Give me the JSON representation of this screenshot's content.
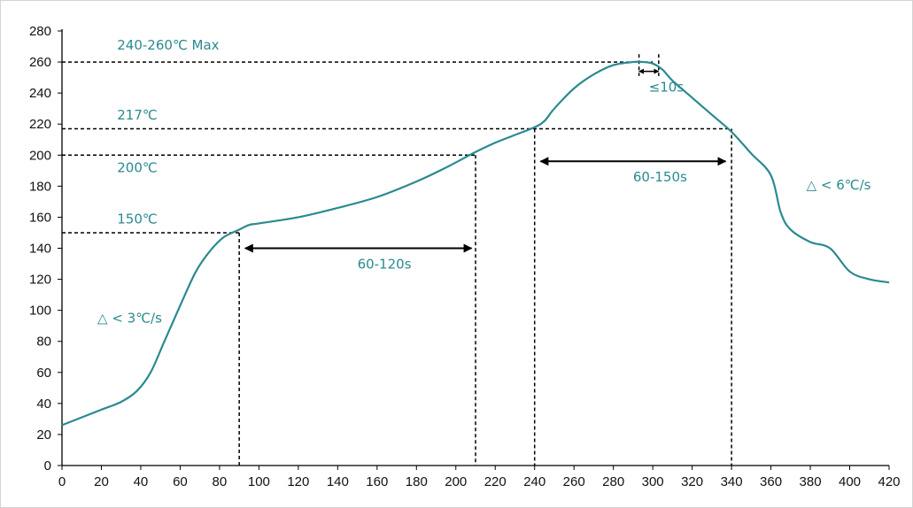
{
  "chart_data": {
    "type": "line",
    "title": "",
    "xlabel": "",
    "ylabel": "",
    "xlim": [
      0,
      420
    ],
    "ylim": [
      0,
      280
    ],
    "x_ticks": [
      0,
      20,
      40,
      60,
      80,
      100,
      120,
      140,
      160,
      180,
      200,
      220,
      240,
      260,
      280,
      300,
      320,
      340,
      360,
      380,
      400,
      420
    ],
    "y_ticks": [
      0,
      20,
      40,
      60,
      80,
      100,
      120,
      140,
      160,
      180,
      200,
      220,
      240,
      260,
      280
    ],
    "grid": false,
    "legend": "none",
    "series": [
      {
        "name": "",
        "color": "#2a8a90",
        "x": [
          0,
          10,
          20,
          30,
          38,
          45,
          52,
          60,
          68,
          75,
          82,
          90,
          95,
          100,
          120,
          140,
          160,
          180,
          195,
          210,
          220,
          230,
          240,
          245,
          250,
          260,
          270,
          280,
          290,
          295,
          300,
          305,
          310,
          320,
          330,
          340,
          350,
          360,
          365,
          370,
          380,
          390,
          400,
          410,
          420
        ],
        "y": [
          26,
          31,
          36,
          41,
          48,
          60,
          80,
          103,
          125,
          138,
          147,
          152,
          155,
          156,
          160,
          166,
          173,
          183,
          192,
          202,
          208,
          213,
          218,
          222,
          230,
          243,
          252,
          258,
          260,
          260,
          259,
          255,
          248,
          237,
          226,
          215,
          201,
          187,
          163,
          152,
          144,
          140,
          125,
          120,
          118
        ]
      }
    ],
    "reference_lines": {
      "horizontal": [
        {
          "y": 260,
          "x_end": 300
        },
        {
          "y": 217,
          "x_end": 340
        },
        {
          "y": 200,
          "x_end": 210
        },
        {
          "y": 150,
          "x_end": 90
        }
      ],
      "vertical": [
        90,
        210,
        240,
        340,
        293,
        303
      ]
    },
    "spans": [
      {
        "x1": 93,
        "x2": 208,
        "y": 140,
        "label_y": 127
      },
      {
        "x1": 243,
        "x2": 337,
        "y": 196,
        "label_y": 183
      }
    ],
    "peak_marker": {
      "x1": 293,
      "x2": 303,
      "y": 254
    },
    "annotations": [
      {
        "text": "240-260℃ Max",
        "x": 28,
        "y": 268
      },
      {
        "text": "217℃",
        "x": 28,
        "y": 223
      },
      {
        "text": "200℃",
        "x": 28,
        "y": 189
      },
      {
        "text": "150℃",
        "x": 28,
        "y": 156
      },
      {
        "text": "60-120s",
        "x": 150,
        "y": 127
      },
      {
        "text": "60-150s",
        "x": 290,
        "y": 183
      },
      {
        "text": "≤10s",
        "x": 298,
        "y": 241
      },
      {
        "text": "△ < 3℃/s",
        "x": 18,
        "y": 92
      },
      {
        "text": "△ < 6℃/s",
        "x": 378,
        "y": 178
      }
    ]
  }
}
